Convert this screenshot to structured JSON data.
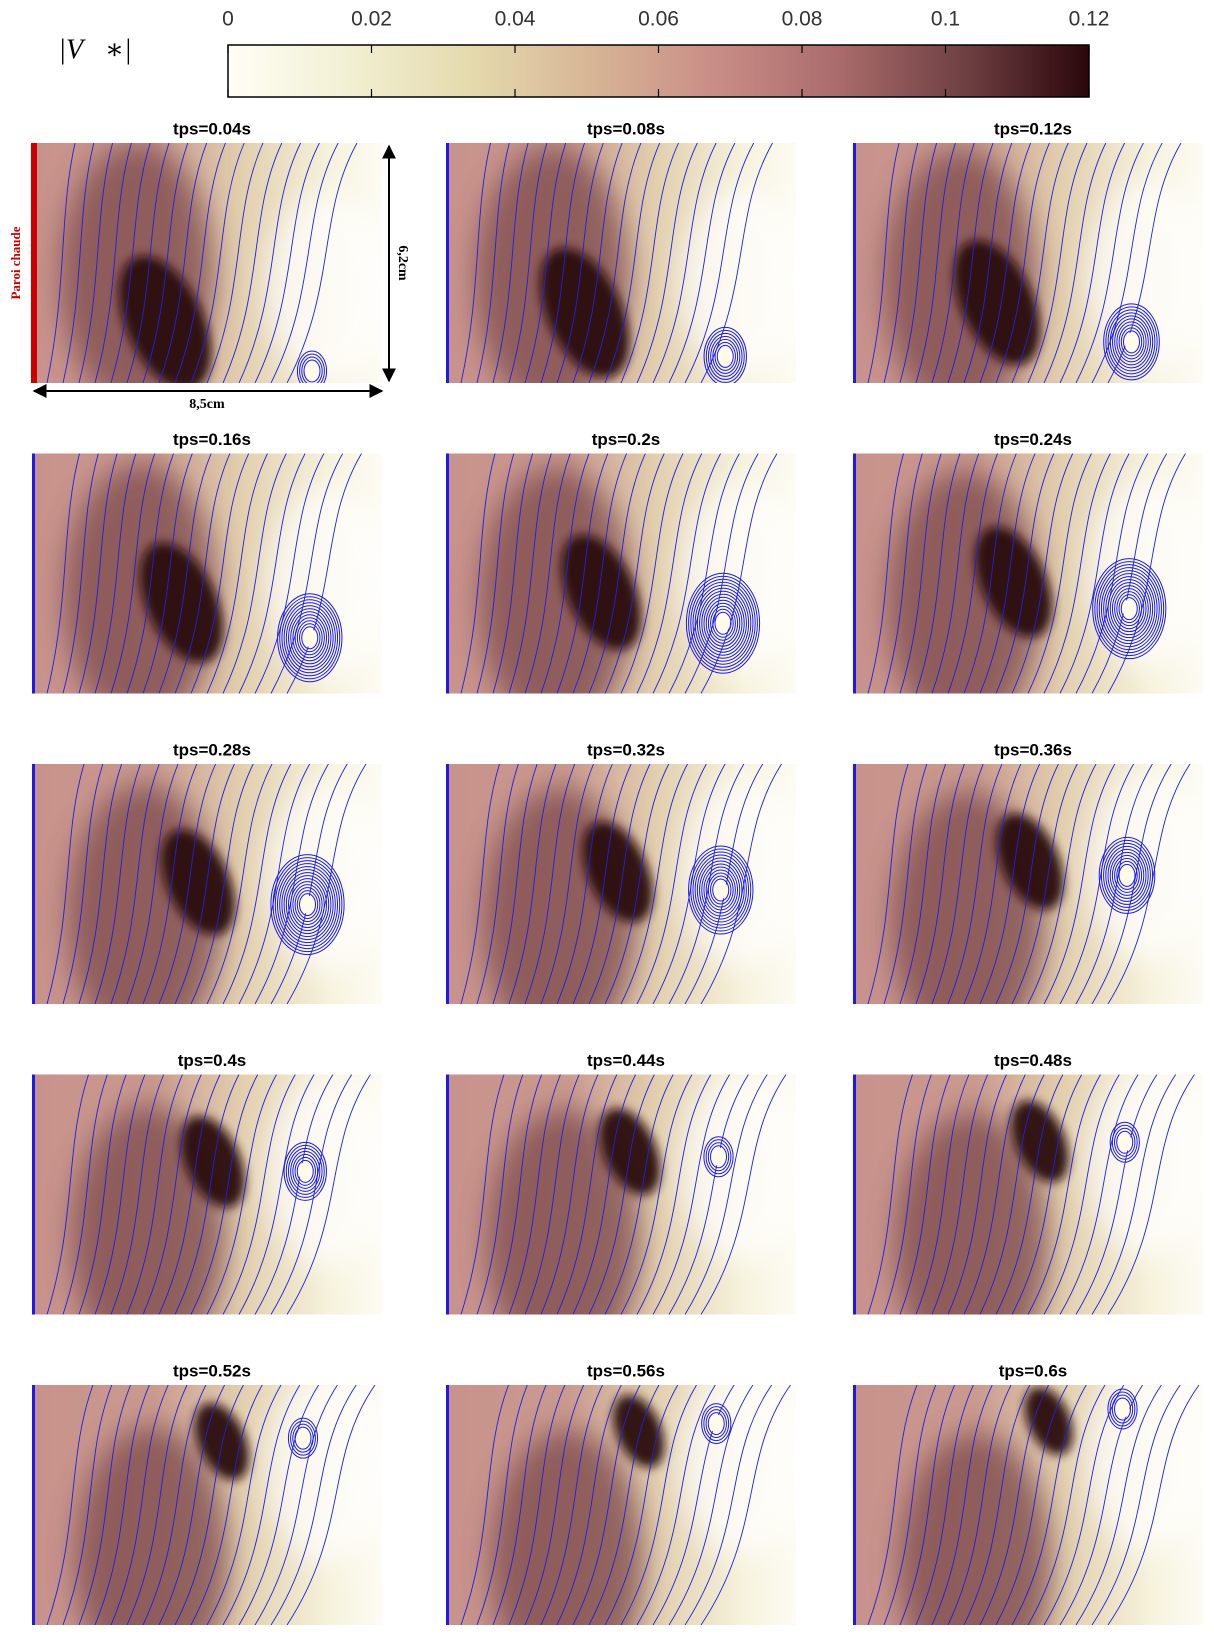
{
  "colorbar": {
    "label": "|V⃗∗|",
    "lim": [
      0,
      0.12
    ],
    "ticks": [
      0,
      0.02,
      0.04,
      0.06,
      0.08,
      0.1,
      0.12
    ],
    "colors": [
      "#fffef6",
      "#f1efd2",
      "#e4d9ad",
      "#d6b394",
      "#c88c86",
      "#a86a6a",
      "#6e3f42",
      "#2a070b"
    ]
  },
  "annotations": {
    "wall": "Paroi chaude",
    "height": "6,2cm",
    "width": "8,5cm"
  },
  "panels": [
    {
      "title": "tps=0.04s"
    },
    {
      "title": "tps=0.08s"
    },
    {
      "title": "tps=0.12s"
    },
    {
      "title": "tps=0.16s"
    },
    {
      "title": "tps=0.2s"
    },
    {
      "title": "tps=0.24s"
    },
    {
      "title": "tps=0.28s"
    },
    {
      "title": "tps=0.32s"
    },
    {
      "title": "tps=0.36s"
    },
    {
      "title": "tps=0.4s"
    },
    {
      "title": "tps=0.44s"
    },
    {
      "title": "tps=0.48s"
    },
    {
      "title": "tps=0.52s"
    },
    {
      "title": "tps=0.56s"
    },
    {
      "title": "tps=0.6s"
    }
  ]
}
